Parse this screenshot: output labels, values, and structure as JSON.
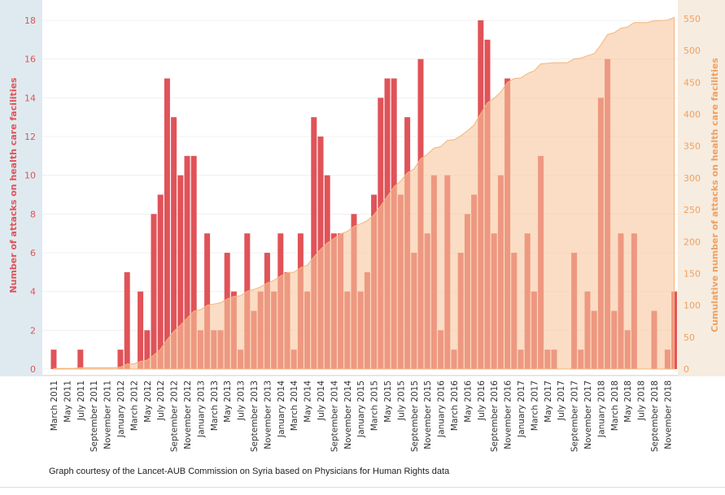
{
  "chart_data": {
    "type": "bar",
    "ylabel": "Number of attacks on health care facilities",
    "y2label": "Cumulative number of attacks on health care facilities",
    "ylim": [
      0,
      18
    ],
    "y2lim": [
      0,
      550
    ],
    "yticks": [
      0,
      2,
      4,
      6,
      8,
      10,
      12,
      14,
      16,
      18
    ],
    "y2ticks": [
      0,
      50,
      100,
      150,
      200,
      250,
      300,
      350,
      400,
      450,
      500,
      550
    ],
    "grid": true,
    "colors": {
      "bars": "#e05358",
      "cumulative_area": "#f7c79c",
      "left_axis": "#e05358",
      "right_axis": "#f0a060"
    },
    "start_month": "March 2011",
    "xtick_labels": [
      "March 2011",
      "May 2011",
      "July 2011",
      "September 2011",
      "November 2011",
      "January 2012",
      "March 2012",
      "May 2012",
      "July 2012",
      "September 2012",
      "November 2012",
      "January 2013",
      "March 2013",
      "May 2013",
      "July 2013",
      "September 2013",
      "November 2013",
      "January 2014",
      "March 2014",
      "May 2014",
      "July 2014",
      "September 2014",
      "November 2014",
      "January 2015",
      "March 2015",
      "May 2015",
      "July 2015",
      "September 2015",
      "November 2015",
      "January 2016",
      "March 2016",
      "May 2016",
      "July 2016",
      "September 2016",
      "November 2016",
      "January 2017",
      "March 2017",
      "May 2017",
      "July 2017",
      "September 2017",
      "November 2017",
      "January 2018",
      "March 2018",
      "May 2018",
      "July 2018",
      "September 2018",
      "November 2018"
    ],
    "values": [
      1,
      0,
      0,
      0,
      1,
      0,
      0,
      0,
      0,
      0,
      1,
      5,
      0,
      4,
      2,
      8,
      9,
      15,
      13,
      10,
      11,
      11,
      2,
      7,
      2,
      2,
      6,
      4,
      1,
      7,
      3,
      4,
      6,
      4,
      7,
      5,
      1,
      7,
      4,
      13,
      12,
      10,
      7,
      7,
      4,
      8,
      4,
      5,
      9,
      14,
      15,
      15,
      9,
      13,
      6,
      16,
      7,
      10,
      2,
      10,
      1,
      6,
      8,
      9,
      18,
      17,
      7,
      10,
      15,
      6,
      1,
      7,
      4,
      11,
      1,
      1,
      0,
      0,
      6,
      1,
      4,
      3,
      14,
      16,
      3,
      7,
      2,
      7,
      0,
      0,
      3,
      0,
      1,
      4
    ]
  },
  "caption": "Graph courtesy of the Lancet-AUB Commission on Syria based on Physicians for Human Rights data"
}
